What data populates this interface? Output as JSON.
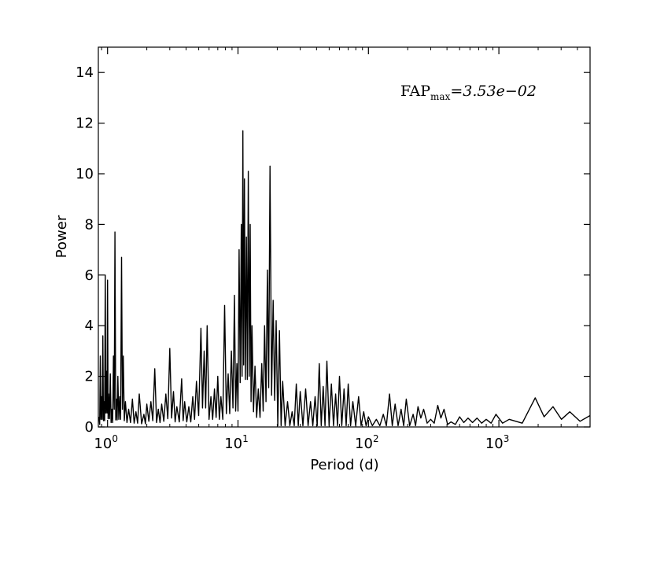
{
  "chart_data": {
    "type": "line",
    "xlabel": "Period (d)",
    "ylabel": "Power",
    "xscale": "log",
    "xlim": [
      0.85,
      5000
    ],
    "ylim": [
      0,
      15
    ],
    "y_ticks": [
      0,
      2,
      4,
      6,
      8,
      10,
      12,
      14
    ],
    "y_tick_labels": [
      "0",
      "2",
      "4",
      "6",
      "8",
      "10",
      "12",
      "14"
    ],
    "x_ticks": [
      {
        "value": 1,
        "base": "10",
        "exp": "0"
      },
      {
        "value": 10,
        "base": "10",
        "exp": "1"
      },
      {
        "value": 100,
        "base": "10",
        "exp": "2"
      },
      {
        "value": 1000,
        "base": "10",
        "exp": "3"
      }
    ],
    "annotation": {
      "main": "FAP",
      "sub": "max",
      "rest": "=3.53e−02"
    },
    "line_color": "#000000",
    "peaks": [
      [
        0.86,
        0.4
      ],
      [
        0.88,
        2.8
      ],
      [
        0.9,
        1.2
      ],
      [
        0.92,
        3.6
      ],
      [
        0.94,
        1.0
      ],
      [
        0.96,
        6.0
      ],
      [
        0.98,
        2.2
      ],
      [
        1.0,
        5.8
      ],
      [
        1.02,
        1.3
      ],
      [
        1.05,
        2.1
      ],
      [
        1.08,
        0.7
      ],
      [
        1.11,
        2.8
      ],
      [
        1.14,
        7.7
      ],
      [
        1.17,
        1.1
      ],
      [
        1.2,
        2.0
      ],
      [
        1.24,
        1.2
      ],
      [
        1.28,
        6.7
      ],
      [
        1.32,
        2.8
      ],
      [
        1.37,
        1.0
      ],
      [
        1.45,
        0.7
      ],
      [
        1.55,
        1.1
      ],
      [
        1.65,
        0.6
      ],
      [
        1.75,
        1.3
      ],
      [
        1.9,
        0.5
      ],
      [
        2.0,
        0.9
      ],
      [
        2.15,
        1.0
      ],
      [
        2.3,
        2.3
      ],
      [
        2.45,
        0.7
      ],
      [
        2.6,
        0.9
      ],
      [
        2.8,
        1.3
      ],
      [
        3.0,
        3.1
      ],
      [
        3.2,
        1.4
      ],
      [
        3.4,
        0.8
      ],
      [
        3.7,
        1.9
      ],
      [
        3.9,
        1.0
      ],
      [
        4.2,
        0.8
      ],
      [
        4.5,
        1.2
      ],
      [
        4.8,
        1.8
      ],
      [
        5.2,
        3.9
      ],
      [
        5.5,
        3.0
      ],
      [
        5.8,
        4.0
      ],
      [
        6.2,
        1.2
      ],
      [
        6.6,
        1.5
      ],
      [
        7.0,
        2.0
      ],
      [
        7.4,
        1.2
      ],
      [
        7.9,
        4.8
      ],
      [
        8.4,
        2.1
      ],
      [
        8.9,
        3.0
      ],
      [
        9.4,
        5.2
      ],
      [
        9.8,
        2.5
      ],
      [
        10.2,
        7.0
      ],
      [
        10.6,
        8.0
      ],
      [
        10.9,
        11.7
      ],
      [
        11.2,
        9.8
      ],
      [
        11.6,
        7.5
      ],
      [
        12.0,
        10.1
      ],
      [
        12.4,
        8.0
      ],
      [
        12.8,
        4.0
      ],
      [
        13.5,
        2.4
      ],
      [
        14.3,
        1.5
      ],
      [
        15.2,
        2.5
      ],
      [
        16.0,
        4.0
      ],
      [
        16.8,
        6.2
      ],
      [
        17.6,
        10.3
      ],
      [
        18.6,
        5.0
      ],
      [
        19.6,
        4.2
      ],
      [
        20.8,
        3.8
      ],
      [
        22.0,
        1.8
      ],
      [
        24.0,
        1.0
      ],
      [
        26.0,
        0.6
      ],
      [
        28.0,
        1.7
      ],
      [
        30.0,
        1.4
      ],
      [
        33.0,
        1.5
      ],
      [
        36.0,
        1.0
      ],
      [
        39.0,
        1.2
      ],
      [
        42.0,
        2.5
      ],
      [
        45.0,
        1.6
      ],
      [
        48.0,
        2.6
      ],
      [
        52.0,
        1.7
      ],
      [
        56.0,
        1.3
      ],
      [
        60.0,
        2.0
      ],
      [
        65.0,
        1.5
      ],
      [
        70.0,
        1.7
      ],
      [
        76.0,
        1.0
      ],
      [
        84.0,
        1.2
      ],
      [
        92.0,
        0.6
      ],
      [
        100.0,
        0.4
      ],
      [
        115.0,
        0.3
      ],
      [
        130.0,
        0.5
      ],
      [
        145.0,
        1.3
      ],
      [
        160.0,
        0.9
      ],
      [
        178.0,
        0.7
      ],
      [
        195.0,
        1.1
      ],
      [
        220.0,
        0.5
      ],
      [
        240.0,
        0.8
      ],
      [
        265.0,
        0.7
      ],
      [
        300.0,
        0.3
      ],
      [
        340.0,
        0.85
      ],
      [
        380.0,
        0.7
      ],
      [
        430.0,
        0.2
      ],
      [
        500.0,
        0.4
      ],
      [
        580.0,
        0.35
      ],
      [
        680.0,
        0.35
      ],
      [
        800.0,
        0.3
      ],
      [
        950.0,
        0.5
      ],
      [
        1200.0,
        0.3
      ],
      [
        1900.0,
        1.15
      ],
      [
        2600.0,
        0.8
      ],
      [
        3500.0,
        0.6
      ],
      [
        5000.0,
        0.45
      ]
    ]
  }
}
